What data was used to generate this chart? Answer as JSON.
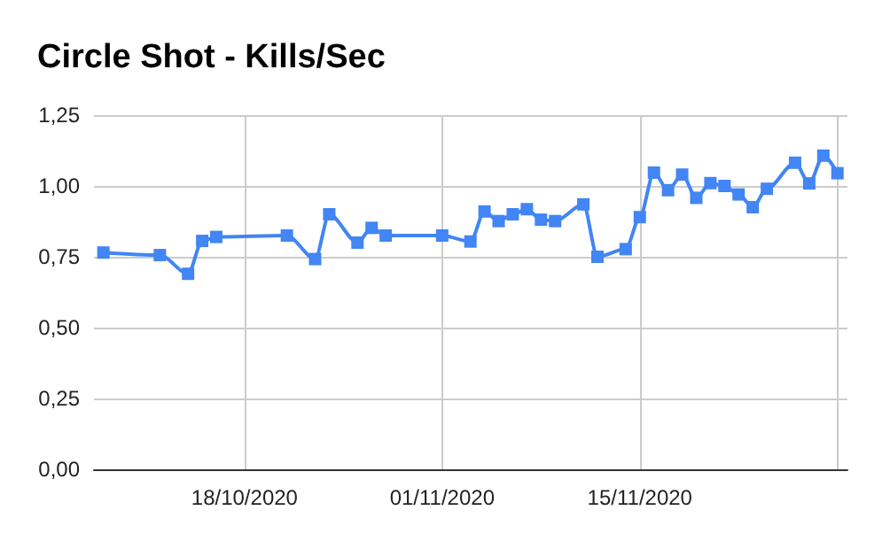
{
  "chart_data": {
    "type": "line",
    "title": "Circle Shot - Kills/Sec",
    "x": [
      "2020-10-08",
      "2020-10-12",
      "2020-10-14",
      "2020-10-15",
      "2020-10-16",
      "2020-10-21",
      "2020-10-23",
      "2020-10-24",
      "2020-10-26",
      "2020-10-27",
      "2020-10-28",
      "2020-11-01",
      "2020-11-03",
      "2020-11-04",
      "2020-11-05",
      "2020-11-06",
      "2020-11-07",
      "2020-11-08",
      "2020-11-09",
      "2020-11-11",
      "2020-11-12",
      "2020-11-14",
      "2020-11-15",
      "2020-11-16",
      "2020-11-17",
      "2020-11-18",
      "2020-11-19",
      "2020-11-20",
      "2020-11-21",
      "2020-11-22",
      "2020-11-23",
      "2020-11-24",
      "2020-11-26",
      "2020-11-27",
      "2020-11-28",
      "2020-11-29"
    ],
    "series": [
      {
        "color": "#4285f4",
        "values": [
          0.765,
          0.756,
          0.69,
          0.806,
          0.82,
          0.825,
          0.742,
          0.9,
          0.8,
          0.852,
          0.825,
          0.825,
          0.804,
          0.91,
          0.876,
          0.9,
          0.918,
          0.881,
          0.876,
          0.935,
          0.75,
          0.777,
          0.89,
          1.047,
          0.985,
          1.04,
          0.958,
          1.01,
          1.0,
          0.97,
          0.925,
          0.99,
          1.082,
          1.009,
          1.107,
          1.045
        ]
      }
    ],
    "xlim": [
      "2020-10-07T08:00",
      "2020-11-29T17:00"
    ],
    "xticks": [
      {
        "value": "2020-10-18",
        "label": "18/10/2020"
      },
      {
        "value": "2020-11-01",
        "label": "01/11/2020"
      },
      {
        "value": "2020-11-15",
        "label": "15/11/2020"
      },
      {
        "value": "2020-11-29",
        "label": null
      }
    ],
    "ylim": [
      0,
      1.25
    ],
    "yticks": [
      {
        "value": 0,
        "label": "0,00"
      },
      {
        "value": 0.25,
        "label": "0,25"
      },
      {
        "value": 0.5,
        "label": "0,50"
      },
      {
        "value": 0.75,
        "label": "0,75"
      },
      {
        "value": 1,
        "label": "1,00"
      },
      {
        "value": 1.25,
        "label": "1,25"
      }
    ],
    "grid": true,
    "marker": "square",
    "line_style": "solid"
  }
}
